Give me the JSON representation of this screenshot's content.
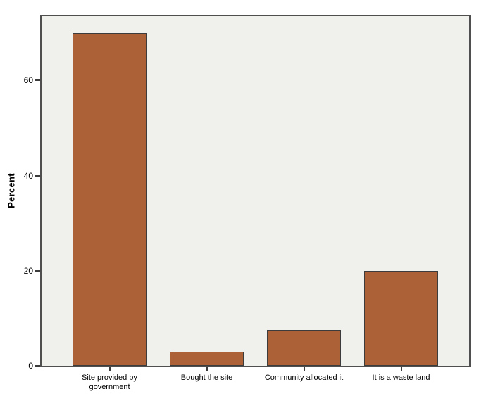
{
  "chart_data": {
    "type": "bar",
    "title": "",
    "categories": [
      "Site provided by government",
      "Bought the site",
      "Community allocated it",
      "It is a waste land"
    ],
    "values": [
      70,
      3,
      7.5,
      20
    ],
    "xlabel": "",
    "ylabel": "Percent",
    "ylim": [
      0,
      73.5
    ],
    "yticks": [
      0,
      20,
      40,
      60
    ],
    "grid": false,
    "legend_position": "none",
    "colors": {
      "bar_fill": "#ad6136",
      "bar_border": "#3c3c3c",
      "plot_background": "#f0f1ec",
      "frame": "#4f4f4f",
      "tick": "#3c3c3c",
      "text": "#000000",
      "page_background": "#ffffff"
    }
  }
}
